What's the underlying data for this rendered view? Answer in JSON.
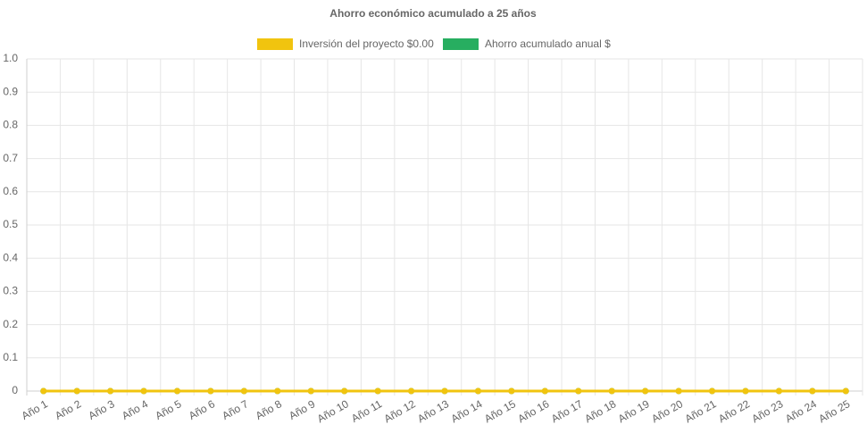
{
  "chart_data": {
    "type": "line",
    "title": "Ahorro económico acumulado a 25 años",
    "categories": [
      "Año 1",
      "Año 2",
      "Año 3",
      "Año 4",
      "Año 5",
      "Año 6",
      "Año 7",
      "Año 8",
      "Año 9",
      "Año 10",
      "Año 11",
      "Año 12",
      "Año 13",
      "Año 14",
      "Año 15",
      "Año 16",
      "Año 17",
      "Año 18",
      "Año 19",
      "Año 20",
      "Año 21",
      "Año 22",
      "Año 23",
      "Año 24",
      "Año 25"
    ],
    "series": [
      {
        "name": "Inversión del proyecto $0.00",
        "color": "#f1c40f",
        "values": [
          0,
          0,
          0,
          0,
          0,
          0,
          0,
          0,
          0,
          0,
          0,
          0,
          0,
          0,
          0,
          0,
          0,
          0,
          0,
          0,
          0,
          0,
          0,
          0,
          0
        ]
      },
      {
        "name": "Ahorro acumulado anual $",
        "color": "#27ae60",
        "values": [
          0,
          0,
          0,
          0,
          0,
          0,
          0,
          0,
          0,
          0,
          0,
          0,
          0,
          0,
          0,
          0,
          0,
          0,
          0,
          0,
          0,
          0,
          0,
          0,
          0
        ]
      }
    ],
    "ylim": [
      0,
      1
    ],
    "yticks": [
      0,
      0.1,
      0.2,
      0.3,
      0.4,
      0.5,
      0.6,
      0.7,
      0.8,
      0.9,
      {
        "value": 1,
        "label": "1.0"
      }
    ],
    "grid": true,
    "legend": "top"
  }
}
